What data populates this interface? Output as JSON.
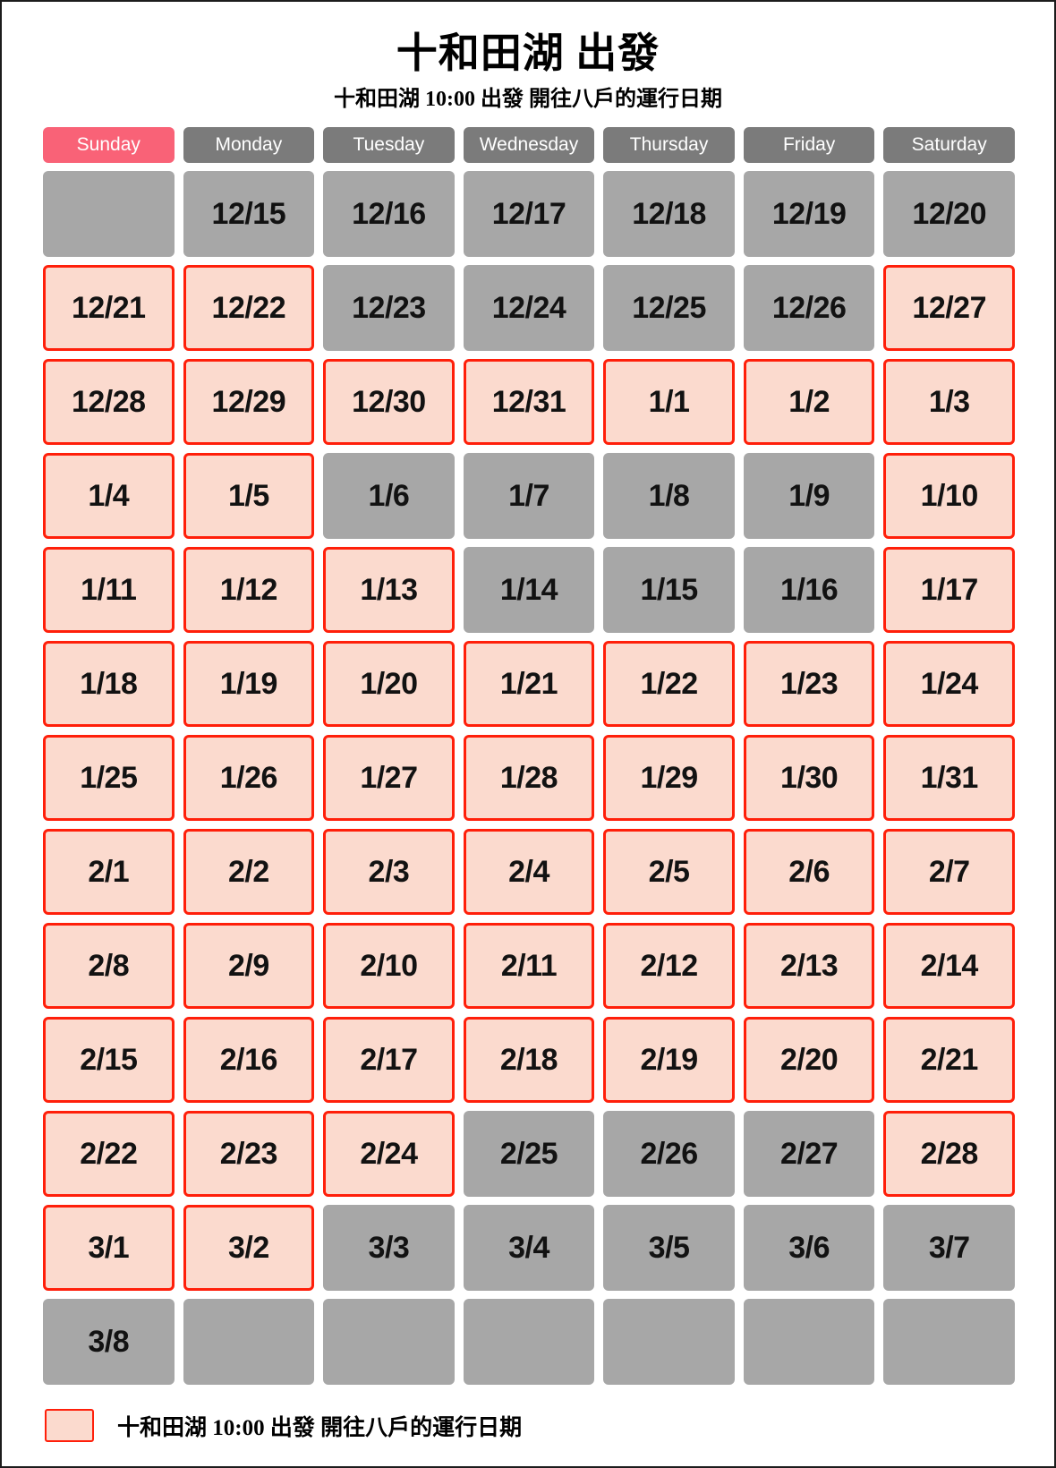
{
  "page": {
    "title": "十和田湖 出發",
    "subtitle": "十和田湖 10:00 出發 開往八戶的運行日期"
  },
  "weekdays": [
    {
      "label": "Sunday",
      "highlight": true
    },
    {
      "label": "Monday",
      "highlight": false
    },
    {
      "label": "Tuesday",
      "highlight": false
    },
    {
      "label": "Wednesday",
      "highlight": false
    },
    {
      "label": "Thursday",
      "highlight": false
    },
    {
      "label": "Friday",
      "highlight": false
    },
    {
      "label": "Saturday",
      "highlight": false
    }
  ],
  "calendar": {
    "rows": [
      [
        {
          "date": "",
          "operating": false
        },
        {
          "date": "12/15",
          "operating": false
        },
        {
          "date": "12/16",
          "operating": false
        },
        {
          "date": "12/17",
          "operating": false
        },
        {
          "date": "12/18",
          "operating": false
        },
        {
          "date": "12/19",
          "operating": false
        },
        {
          "date": "12/20",
          "operating": false
        }
      ],
      [
        {
          "date": "12/21",
          "operating": true
        },
        {
          "date": "12/22",
          "operating": true
        },
        {
          "date": "12/23",
          "operating": false
        },
        {
          "date": "12/24",
          "operating": false
        },
        {
          "date": "12/25",
          "operating": false
        },
        {
          "date": "12/26",
          "operating": false
        },
        {
          "date": "12/27",
          "operating": true
        }
      ],
      [
        {
          "date": "12/28",
          "operating": true
        },
        {
          "date": "12/29",
          "operating": true
        },
        {
          "date": "12/30",
          "operating": true
        },
        {
          "date": "12/31",
          "operating": true
        },
        {
          "date": "1/1",
          "operating": true
        },
        {
          "date": "1/2",
          "operating": true
        },
        {
          "date": "1/3",
          "operating": true
        }
      ],
      [
        {
          "date": "1/4",
          "operating": true
        },
        {
          "date": "1/5",
          "operating": true
        },
        {
          "date": "1/6",
          "operating": false
        },
        {
          "date": "1/7",
          "operating": false
        },
        {
          "date": "1/8",
          "operating": false
        },
        {
          "date": "1/9",
          "operating": false
        },
        {
          "date": "1/10",
          "operating": true
        }
      ],
      [
        {
          "date": "1/11",
          "operating": true
        },
        {
          "date": "1/12",
          "operating": true
        },
        {
          "date": "1/13",
          "operating": true
        },
        {
          "date": "1/14",
          "operating": false
        },
        {
          "date": "1/15",
          "operating": false
        },
        {
          "date": "1/16",
          "operating": false
        },
        {
          "date": "1/17",
          "operating": true
        }
      ],
      [
        {
          "date": "1/18",
          "operating": true
        },
        {
          "date": "1/19",
          "operating": true
        },
        {
          "date": "1/20",
          "operating": true
        },
        {
          "date": "1/21",
          "operating": true
        },
        {
          "date": "1/22",
          "operating": true
        },
        {
          "date": "1/23",
          "operating": true
        },
        {
          "date": "1/24",
          "operating": true
        }
      ],
      [
        {
          "date": "1/25",
          "operating": true
        },
        {
          "date": "1/26",
          "operating": true
        },
        {
          "date": "1/27",
          "operating": true
        },
        {
          "date": "1/28",
          "operating": true
        },
        {
          "date": "1/29",
          "operating": true
        },
        {
          "date": "1/30",
          "operating": true
        },
        {
          "date": "1/31",
          "operating": true
        }
      ],
      [
        {
          "date": "2/1",
          "operating": true
        },
        {
          "date": "2/2",
          "operating": true
        },
        {
          "date": "2/3",
          "operating": true
        },
        {
          "date": "2/4",
          "operating": true
        },
        {
          "date": "2/5",
          "operating": true
        },
        {
          "date": "2/6",
          "operating": true
        },
        {
          "date": "2/7",
          "operating": true
        }
      ],
      [
        {
          "date": "2/8",
          "operating": true
        },
        {
          "date": "2/9",
          "operating": true
        },
        {
          "date": "2/10",
          "operating": true
        },
        {
          "date": "2/11",
          "operating": true
        },
        {
          "date": "2/12",
          "operating": true
        },
        {
          "date": "2/13",
          "operating": true
        },
        {
          "date": "2/14",
          "operating": true
        }
      ],
      [
        {
          "date": "2/15",
          "operating": true
        },
        {
          "date": "2/16",
          "operating": true
        },
        {
          "date": "2/17",
          "operating": true
        },
        {
          "date": "2/18",
          "operating": true
        },
        {
          "date": "2/19",
          "operating": true
        },
        {
          "date": "2/20",
          "operating": true
        },
        {
          "date": "2/21",
          "operating": true
        }
      ],
      [
        {
          "date": "2/22",
          "operating": true
        },
        {
          "date": "2/23",
          "operating": true
        },
        {
          "date": "2/24",
          "operating": true
        },
        {
          "date": "2/25",
          "operating": false
        },
        {
          "date": "2/26",
          "operating": false
        },
        {
          "date": "2/27",
          "operating": false
        },
        {
          "date": "2/28",
          "operating": true
        }
      ],
      [
        {
          "date": "3/1",
          "operating": true
        },
        {
          "date": "3/2",
          "operating": true
        },
        {
          "date": "3/3",
          "operating": false
        },
        {
          "date": "3/4",
          "operating": false
        },
        {
          "date": "3/5",
          "operating": false
        },
        {
          "date": "3/6",
          "operating": false
        },
        {
          "date": "3/7",
          "operating": false
        }
      ],
      [
        {
          "date": "3/8",
          "operating": false
        },
        {
          "date": "",
          "operating": false
        },
        {
          "date": "",
          "operating": false
        },
        {
          "date": "",
          "operating": false
        },
        {
          "date": "",
          "operating": false
        },
        {
          "date": "",
          "operating": false
        },
        {
          "date": "",
          "operating": false
        }
      ]
    ]
  },
  "legend": {
    "text": "十和田湖 10:00 出發 開往八戶的運行日期"
  },
  "colors": {
    "sunday_header": "#f96277",
    "weekday_header": "#7b7b7b",
    "non_operating_cell": "#a7a7a7",
    "operating_cell_fill": "#fbdace",
    "operating_cell_border": "#ff1f0a"
  }
}
